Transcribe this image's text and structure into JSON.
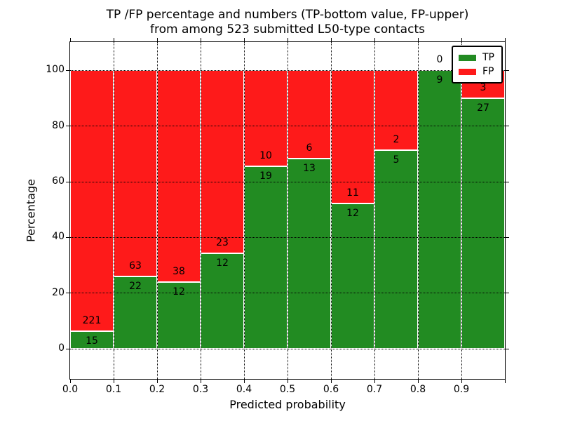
{
  "title": {
    "line1": "TP /FP percentage and numbers (TP-bottom value, FP-upper)",
    "line2": "from among 523 submitted L50-type contacts"
  },
  "chart_data": {
    "type": "bar",
    "stacked": true,
    "normalized": "each bin scaled to 100%, segment heights are TP/(TP+FP) and FP/(TP+FP) percentages",
    "title": "TP /FP percentage and numbers (TP-bottom value, FP-upper)\nfrom among 523 submitted L50-type contacts",
    "xlabel": "Predicted probability",
    "ylabel": "Percentage",
    "total_contacts": 523,
    "categories": [
      "0.0-0.1",
      "0.1-0.2",
      "0.2-0.3",
      "0.3-0.4",
      "0.4-0.5",
      "0.5-0.6",
      "0.6-0.7",
      "0.7-0.8",
      "0.8-0.9",
      "0.9-1.0"
    ],
    "series": [
      {
        "name": "TP",
        "color": "#228b22",
        "values": [
          15,
          22,
          12,
          12,
          19,
          13,
          12,
          5,
          9,
          27
        ]
      },
      {
        "name": "FP",
        "color": "#fe1a1a",
        "values": [
          221,
          63,
          38,
          23,
          10,
          6,
          11,
          2,
          0,
          3
        ]
      }
    ],
    "xticks": [
      "0.0",
      "0.1",
      "0.2",
      "0.3",
      "0.4",
      "0.5",
      "0.6",
      "0.7",
      "0.8",
      "0.9"
    ],
    "yticks": [
      0,
      20,
      40,
      60,
      80,
      100
    ],
    "xlim": [
      0.0,
      1.0
    ],
    "ylim": [
      -10.8,
      110.2
    ],
    "grid": "dotted, drawn over bars",
    "bar_edge_color": "#ffffff",
    "legend": {
      "position": "upper right",
      "entries": [
        {
          "label": "TP",
          "color": "#228b22"
        },
        {
          "label": "FP",
          "color": "#fe1a1a"
        }
      ]
    }
  }
}
